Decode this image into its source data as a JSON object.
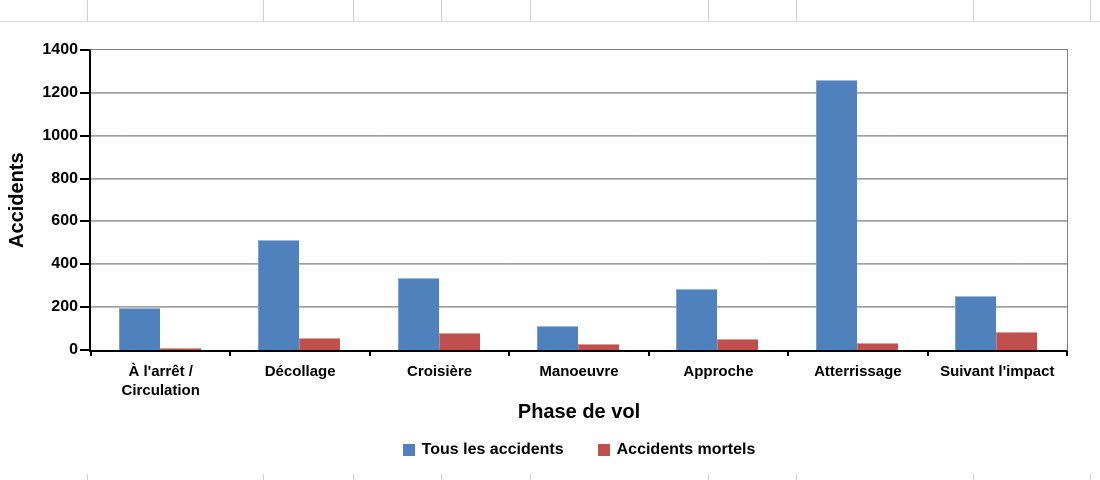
{
  "chart_data": {
    "type": "bar",
    "title": "",
    "xlabel": "Phase de vol",
    "ylabel": "Accidents",
    "categories": [
      "À l'arrêt /\nCirculation",
      "Décollage",
      "Croisière",
      "Manoeuvre",
      "Approche",
      "Atterrissage",
      "Suivant l'impact"
    ],
    "series": [
      {
        "name": "Tous les accidents",
        "color": "#4F81BD",
        "values": [
          195,
          515,
          335,
          110,
          285,
          1260,
          250
        ]
      },
      {
        "name": "Accidents mortels",
        "color": "#C0504D",
        "values": [
          10,
          55,
          80,
          30,
          50,
          35,
          85
        ]
      }
    ],
    "ylim": [
      0,
      1400
    ],
    "ytick_step": 200,
    "yticks": [
      0,
      200,
      400,
      600,
      800,
      1000,
      1200,
      1400
    ],
    "grid": true,
    "legend_position": "bottom"
  },
  "colors": {
    "series_blue": "#4F81BD",
    "series_red": "#C0504D",
    "gridline": "#9a9ca0",
    "axis": "#000000",
    "plot_border": "#7f7f7f",
    "worksheet_line": "#cfcfcf"
  }
}
